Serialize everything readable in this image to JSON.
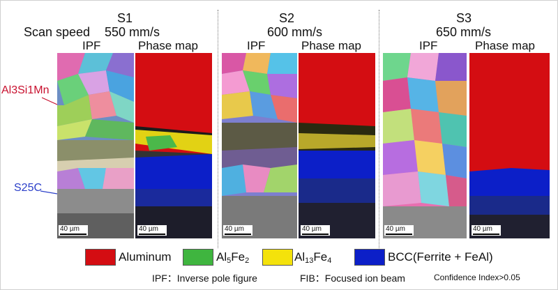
{
  "columns": [
    {
      "id": "S1",
      "speed": "550 mm/s"
    },
    {
      "id": "S2",
      "speed": "600 mm/s"
    },
    {
      "id": "S3",
      "speed": "650 mm/s"
    }
  ],
  "scan_speed_label": "Scan speed",
  "panel_labels": {
    "ipf": "IPF",
    "phase": "Phase map"
  },
  "side_labels": {
    "top_material": "Al3Si1Mn",
    "bottom_material": "S25C"
  },
  "scale_bar": "40 µm",
  "legend": [
    {
      "label": "Aluminum",
      "color": "#d40d12"
    },
    {
      "label": "Al5Fe2",
      "base": "Al",
      "sub1": "5",
      "mid": "Fe",
      "sub2": "2",
      "color": "#3fb53f"
    },
    {
      "label": "Al13Fe4",
      "base": "Al",
      "sub1": "13",
      "mid": "Fe",
      "sub2": "4",
      "color": "#f4e20b"
    },
    {
      "label": "BCC(Ferrite + FeAl)",
      "color": "#0c1fc8"
    }
  ],
  "footnotes": {
    "ipf": "IPF：Inverse pole figure",
    "fib": "FIB：Focused ion beam",
    "ci": "Confidence Index>0.05"
  },
  "colors": {
    "top_label": "#c8102e",
    "bottom_label": "#2b3fc9"
  }
}
